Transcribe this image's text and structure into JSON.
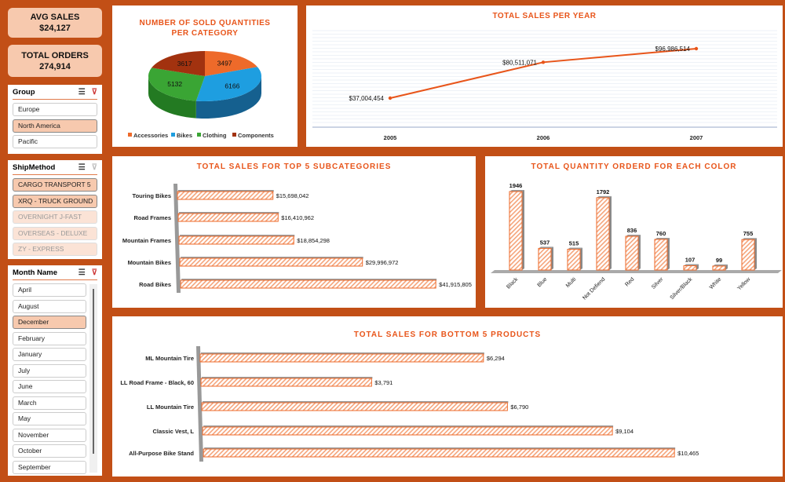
{
  "kpis": {
    "avg_sales_label": "AVG SALES",
    "avg_sales_value": "$24,127",
    "total_orders_label": "TOTAL ORDERS",
    "total_orders_value": "274,914"
  },
  "slicers": {
    "group": {
      "title": "Group",
      "items": [
        {
          "label": "Europe",
          "state": "normal"
        },
        {
          "label": "North America",
          "state": "selected"
        },
        {
          "label": "Pacific",
          "state": "normal"
        }
      ]
    },
    "ship": {
      "title": "ShipMethod",
      "items": [
        {
          "label": "CARGO TRANSPORT 5",
          "state": "selected"
        },
        {
          "label": "XRQ - TRUCK GROUND",
          "state": "selected"
        },
        {
          "label": "OVERNIGHT J-FAST",
          "state": "dim"
        },
        {
          "label": "OVERSEAS - DELUXE",
          "state": "dim"
        },
        {
          "label": "ZY - EXPRESS",
          "state": "dim"
        }
      ]
    },
    "month": {
      "title": "Month Name",
      "items": [
        {
          "label": "April",
          "state": "normal"
        },
        {
          "label": "August",
          "state": "normal"
        },
        {
          "label": "December",
          "state": "selected"
        },
        {
          "label": "February",
          "state": "normal"
        },
        {
          "label": "January",
          "state": "normal"
        },
        {
          "label": "July",
          "state": "normal"
        },
        {
          "label": "June",
          "state": "normal"
        },
        {
          "label": "March",
          "state": "normal"
        },
        {
          "label": "May",
          "state": "normal"
        },
        {
          "label": "November",
          "state": "normal"
        },
        {
          "label": "October",
          "state": "normal"
        },
        {
          "label": "September",
          "state": "normal"
        }
      ]
    }
  },
  "chart_data": [
    {
      "type": "pie",
      "title": "NUMBER OF SOLD QUANTITIES PER CATEGORY",
      "categories": [
        "Accessories",
        "Bikes",
        "Clothing",
        "Components"
      ],
      "values": [
        3497,
        6166,
        5132,
        3617
      ],
      "colors": [
        "#ee6a2a",
        "#1e9ee0",
        "#3aa534",
        "#a2320f"
      ],
      "legend": "bottom"
    },
    {
      "type": "line",
      "title": "TOTAL SALES PER YEAR",
      "categories": [
        "2005",
        "2006",
        "2007"
      ],
      "values": [
        37004454,
        80511071,
        96986514
      ],
      "labels": [
        "$37,004,454",
        "$80,511,071",
        "$96,986,514"
      ],
      "color": "#e8551a"
    },
    {
      "type": "bar",
      "orientation": "horizontal",
      "title": "TOTAL SALES FOR TOP 5 SUBCATEGORIES",
      "categories": [
        "Touring Bikes",
        "Road Frames",
        "Mountain Frames",
        "Mountain Bikes",
        "Road Bikes"
      ],
      "values": [
        15698042,
        16410962,
        18854298,
        29996972,
        41915805
      ],
      "labels": [
        "$15,698,042",
        "$16,410,962",
        "$18,854,298",
        "$29,996,972",
        "$41,915,805"
      ]
    },
    {
      "type": "bar",
      "title": "TOTAL QUANTITY ORDERD FOR EACH COLOR",
      "categories": [
        "Black",
        "Blue",
        "Multi",
        "Not Defiend",
        "Red",
        "Silver",
        "Silver/Black",
        "White",
        "Yellow"
      ],
      "values": [
        1946,
        537,
        515,
        1792,
        836,
        760,
        107,
        99,
        755
      ]
    },
    {
      "type": "bar",
      "orientation": "horizontal",
      "title": "TOTAL SALES FOR BOTTOM 5 PRODUCTS",
      "categories": [
        "ML Mountain Tire",
        "LL Road Frame - Black, 60",
        "LL Mountain Tire",
        "Classic Vest, L",
        "All-Purpose Bike Stand"
      ],
      "values": [
        6294,
        3791,
        6790,
        9104,
        10465
      ],
      "labels": [
        "$6,294",
        "$3,791",
        "$6,790",
        "$9,104",
        "$10,465"
      ]
    }
  ]
}
